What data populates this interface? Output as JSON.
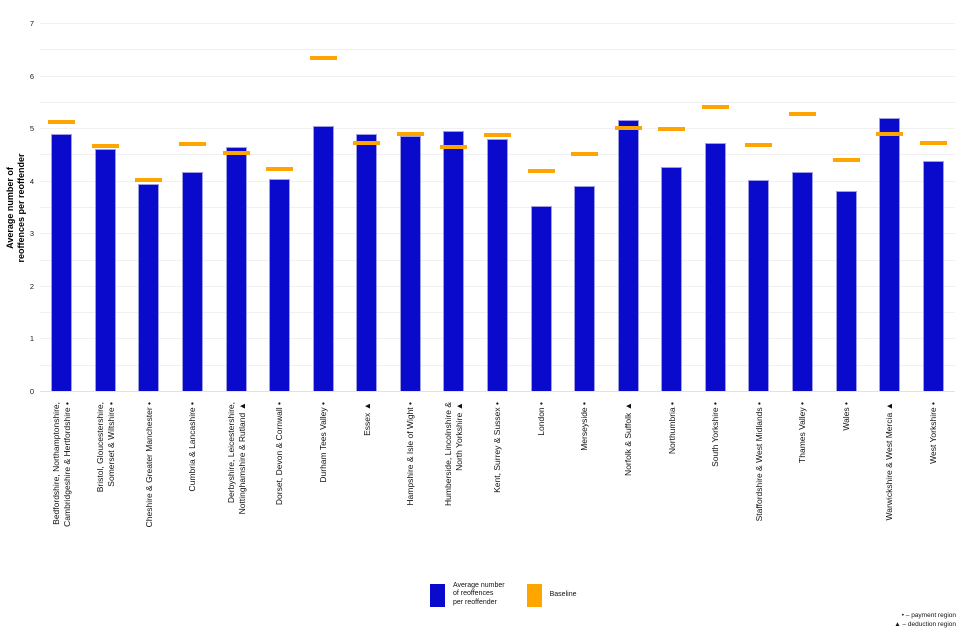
{
  "chart_data": {
    "type": "bar",
    "title": "",
    "ylabel": "Average number of\nreoffences per reoffender",
    "xlabel": "",
    "ylim": [
      0,
      7
    ],
    "ytick_step": 1,
    "grid_step": 0.5,
    "grid": true,
    "legend_position": "bottom-center",
    "series": [
      {
        "name": "Average number of reoffences per reoffender",
        "style": "bar",
        "color": "#0a0acc"
      },
      {
        "name": "Baseline",
        "style": "dash",
        "color": "#ffa500"
      }
    ],
    "categories": [
      {
        "label": "Bedfordshire, Northamptonshire,\nCambridgeshire & Hertfordshire •",
        "marker": "payment",
        "value": 4.88,
        "baseline": 5.11
      },
      {
        "label": "Bristol, Gloucestershire,\nSomerset & Wiltshire •",
        "marker": "payment",
        "value": 4.6,
        "baseline": 4.66
      },
      {
        "label": "Cheshire & Greater Manchester •",
        "marker": "payment",
        "value": 3.93,
        "baseline": 4.02
      },
      {
        "label": "Cumbria & Lancashire •",
        "marker": "payment",
        "value": 4.16,
        "baseline": 4.69
      },
      {
        "label": "Derbyshire, Leicestershire,\nNottinghamshire & Rutland ▲",
        "marker": "deduction",
        "value": 4.65,
        "baseline": 4.53
      },
      {
        "label": "Dorset, Devon & Cornwall •",
        "marker": "payment",
        "value": 4.03,
        "baseline": 4.23
      },
      {
        "label": "Durham Tees Valley •",
        "marker": "payment",
        "value": 5.05,
        "baseline": 6.33
      },
      {
        "label": "Essex ▲",
        "marker": "deduction",
        "value": 4.89,
        "baseline": 4.72
      },
      {
        "label": "Hampshire & Isle of Wight •",
        "marker": "payment",
        "value": 4.85,
        "baseline": 4.88
      },
      {
        "label": "Humberside, Lincolnshire &\nNorth Yorkshire ▲",
        "marker": "deduction",
        "value": 4.95,
        "baseline": 4.65
      },
      {
        "label": "Kent, Surrey & Sussex •",
        "marker": "payment",
        "value": 4.79,
        "baseline": 4.87
      },
      {
        "label": "London •",
        "marker": "payment",
        "value": 3.51,
        "baseline": 4.19
      },
      {
        "label": "Merseyside •",
        "marker": "payment",
        "value": 3.89,
        "baseline": 4.51
      },
      {
        "label": "Norfolk & Suffolk ▲",
        "marker": "deduction",
        "value": 5.16,
        "baseline": 5.01
      },
      {
        "label": "Northumbria •",
        "marker": "payment",
        "value": 4.26,
        "baseline": 4.99
      },
      {
        "label": "South Yorkshire •",
        "marker": "payment",
        "value": 4.72,
        "baseline": 5.41
      },
      {
        "label": "Staffordshire & West Midlands •",
        "marker": "payment",
        "value": 4.02,
        "baseline": 4.67
      },
      {
        "label": "Thames Valley •",
        "marker": "payment",
        "value": 4.16,
        "baseline": 5.26
      },
      {
        "label": "Wales •",
        "marker": "payment",
        "value": 3.81,
        "baseline": 4.39
      },
      {
        "label": "Warwickshire & West Mercia ▲",
        "marker": "deduction",
        "value": 5.19,
        "baseline": 4.89
      },
      {
        "label": "West Yorkshire •",
        "marker": "payment",
        "value": 4.38,
        "baseline": 4.72
      }
    ]
  },
  "legend": {
    "series_label": "Average number\nof reoffences\nper reoffender",
    "baseline_label": "Baseline"
  },
  "footnote": {
    "line1": "• – payment region",
    "line2": "▲ – deduction region"
  },
  "colors": {
    "bar": "#0a0acc",
    "bar_border": "#9e9ee0",
    "baseline": "#ffa500",
    "gridline": "#f0f0f0",
    "axis_line": "#e2e2e2"
  }
}
